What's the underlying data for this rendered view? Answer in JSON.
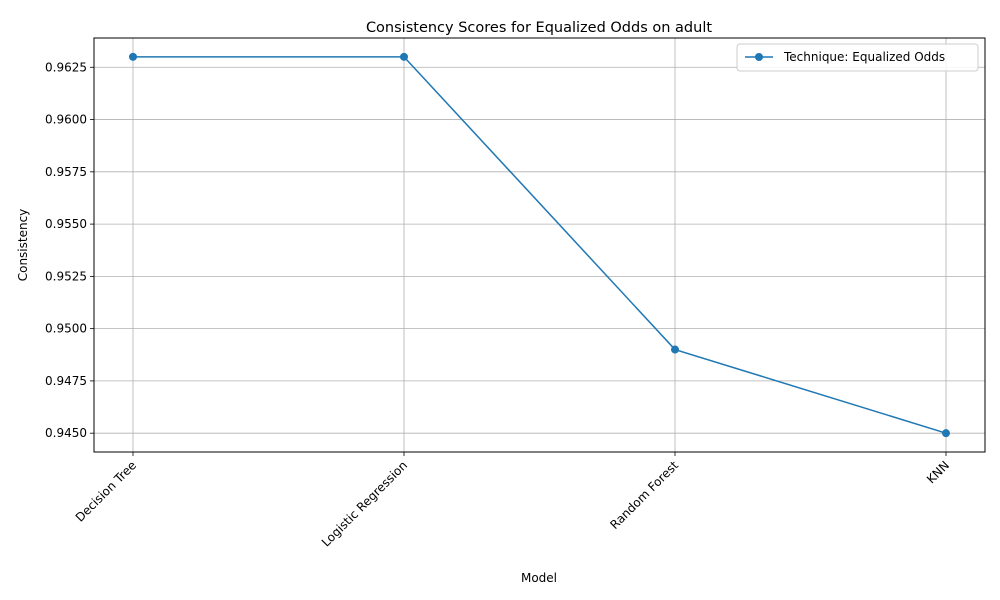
{
  "chart_data": {
    "type": "line",
    "title": "Consistency Scores for Equalized Odds on adult",
    "xlabel": "Model",
    "ylabel": "Consistency",
    "categories": [
      "Decision Tree",
      "Logistic Regression",
      "Random Forest",
      "KNN"
    ],
    "series": [
      {
        "name": "Technique: Equalized Odds",
        "values": [
          0.963,
          0.963,
          0.949,
          0.945
        ],
        "color": "#1f77b4",
        "marker": "circle"
      }
    ],
    "ylim": [
      0.9441,
      0.9639
    ],
    "yticks": [
      0.945,
      0.9475,
      0.95,
      0.9525,
      0.955,
      0.9575,
      0.96,
      0.9625
    ],
    "ytick_labels": [
      "0.9450",
      "0.9475",
      "0.9500",
      "0.9525",
      "0.9550",
      "0.9575",
      "0.9600",
      "0.9625"
    ],
    "grid": true,
    "legend_position": "top-right",
    "xtick_rotation_deg": 45
  }
}
